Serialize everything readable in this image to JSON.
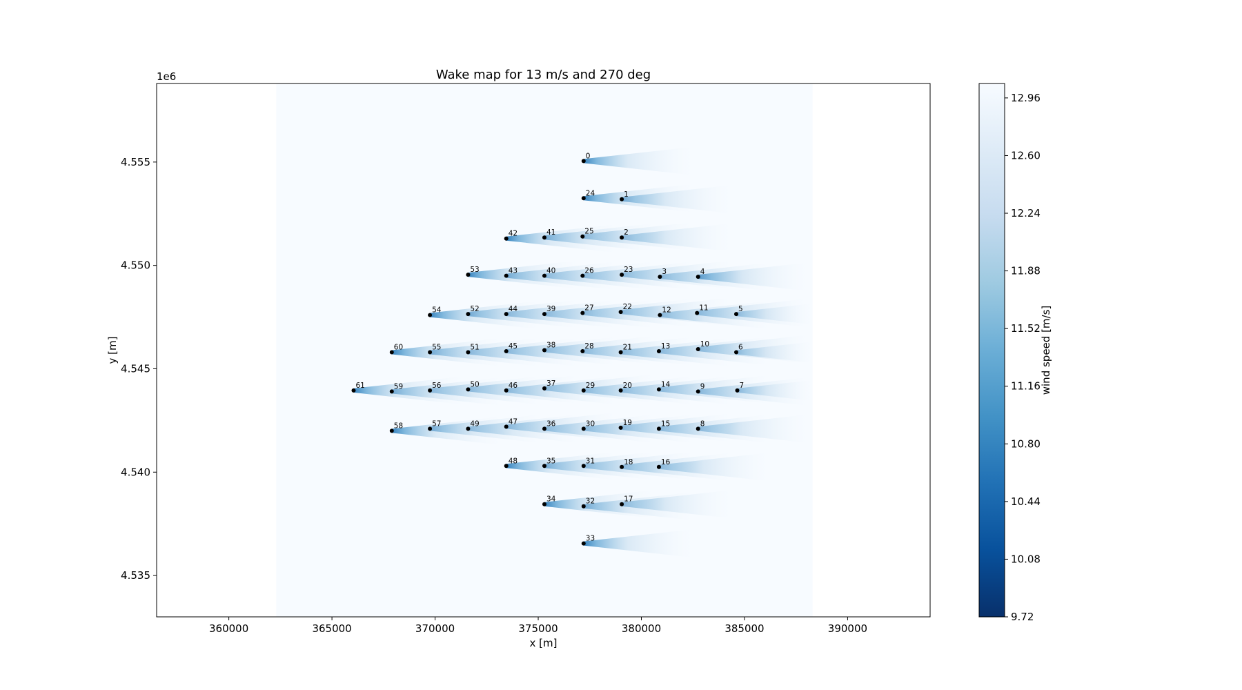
{
  "chart_data": {
    "type": "heatmap",
    "title": "Wake map for 13 m/s and 270 deg",
    "xlabel": "x [m]",
    "ylabel": "y [m]",
    "y_offset_label": "1e6",
    "xlim": [
      356500,
      394000
    ],
    "ylim": [
      4533000,
      4558800
    ],
    "xticks": [
      360000,
      365000,
      370000,
      375000,
      380000,
      385000,
      390000
    ],
    "xtick_labels": [
      "360000",
      "365000",
      "370000",
      "375000",
      "380000",
      "385000",
      "390000"
    ],
    "yticks": [
      4535000,
      4540000,
      4545000,
      4550000,
      4555000
    ],
    "ytick_labels": [
      "4.535",
      "4.540",
      "4.545",
      "4.550",
      "4.555"
    ],
    "domain": {
      "x": [
        362300,
        388300
      ],
      "y": [
        4533000,
        4558800
      ]
    },
    "wind": {
      "speed": 13,
      "direction_deg": 270
    },
    "colormap": "Blues_r",
    "colors": {
      "min": "#08306b",
      "max": "#f7fbff",
      "turbine": "#000000"
    },
    "colorbar": {
      "label": "wind speed [m/s]",
      "min": 9.72,
      "max": 13.05,
      "ticks": [
        9.72,
        10.08,
        10.44,
        10.8,
        11.16,
        11.52,
        11.88,
        12.24,
        12.6,
        12.96
      ],
      "tick_labels": [
        "9.72",
        "10.08",
        "10.44",
        "10.80",
        "11.16",
        "11.52",
        "11.88",
        "12.24",
        "12.60",
        "12.96"
      ]
    },
    "turbines": [
      {
        "id": "0",
        "x": 377200,
        "y": 4555050
      },
      {
        "id": "1",
        "x": 379050,
        "y": 4553200
      },
      {
        "id": "2",
        "x": 379050,
        "y": 4551350
      },
      {
        "id": "3",
        "x": 380900,
        "y": 4549450
      },
      {
        "id": "4",
        "x": 382750,
        "y": 4549450
      },
      {
        "id": "5",
        "x": 384600,
        "y": 4547650
      },
      {
        "id": "6",
        "x": 384600,
        "y": 4545800
      },
      {
        "id": "7",
        "x": 384650,
        "y": 4543950
      },
      {
        "id": "8",
        "x": 382750,
        "y": 4542100
      },
      {
        "id": "9",
        "x": 382750,
        "y": 4543900
      },
      {
        "id": "10",
        "x": 382750,
        "y": 4545950
      },
      {
        "id": "11",
        "x": 382700,
        "y": 4547700
      },
      {
        "id": "12",
        "x": 380900,
        "y": 4547600
      },
      {
        "id": "13",
        "x": 380850,
        "y": 4545850
      },
      {
        "id": "14",
        "x": 380850,
        "y": 4544000
      },
      {
        "id": "15",
        "x": 380850,
        "y": 4542100
      },
      {
        "id": "16",
        "x": 380850,
        "y": 4540250
      },
      {
        "id": "17",
        "x": 379050,
        "y": 4538450
      },
      {
        "id": "18",
        "x": 379050,
        "y": 4540250
      },
      {
        "id": "19",
        "x": 379000,
        "y": 4542150
      },
      {
        "id": "20",
        "x": 379000,
        "y": 4543950
      },
      {
        "id": "21",
        "x": 379000,
        "y": 4545800
      },
      {
        "id": "22",
        "x": 379000,
        "y": 4547750
      },
      {
        "id": "23",
        "x": 379050,
        "y": 4549550
      },
      {
        "id": "24",
        "x": 377200,
        "y": 4553250
      },
      {
        "id": "25",
        "x": 377150,
        "y": 4551400
      },
      {
        "id": "26",
        "x": 377150,
        "y": 4549500
      },
      {
        "id": "27",
        "x": 377150,
        "y": 4547700
      },
      {
        "id": "28",
        "x": 377150,
        "y": 4545850
      },
      {
        "id": "29",
        "x": 377200,
        "y": 4543950
      },
      {
        "id": "30",
        "x": 377200,
        "y": 4542100
      },
      {
        "id": "31",
        "x": 377200,
        "y": 4540300
      },
      {
        "id": "32",
        "x": 377200,
        "y": 4538350
      },
      {
        "id": "33",
        "x": 377200,
        "y": 4536550
      },
      {
        "id": "34",
        "x": 375300,
        "y": 4538450
      },
      {
        "id": "35",
        "x": 375300,
        "y": 4540300
      },
      {
        "id": "36",
        "x": 375300,
        "y": 4542100
      },
      {
        "id": "37",
        "x": 375300,
        "y": 4544050
      },
      {
        "id": "38",
        "x": 375300,
        "y": 4545900
      },
      {
        "id": "39",
        "x": 375300,
        "y": 4547650
      },
      {
        "id": "40",
        "x": 375300,
        "y": 4549500
      },
      {
        "id": "41",
        "x": 375300,
        "y": 4551350
      },
      {
        "id": "42",
        "x": 373450,
        "y": 4551300
      },
      {
        "id": "43",
        "x": 373450,
        "y": 4549500
      },
      {
        "id": "44",
        "x": 373450,
        "y": 4547650
      },
      {
        "id": "45",
        "x": 373450,
        "y": 4545850
      },
      {
        "id": "46",
        "x": 373450,
        "y": 4543950
      },
      {
        "id": "47",
        "x": 373450,
        "y": 4542200
      },
      {
        "id": "48",
        "x": 373450,
        "y": 4540300
      },
      {
        "id": "49",
        "x": 371600,
        "y": 4542100
      },
      {
        "id": "50",
        "x": 371600,
        "y": 4544000
      },
      {
        "id": "51",
        "x": 371600,
        "y": 4545800
      },
      {
        "id": "52",
        "x": 371600,
        "y": 4547650
      },
      {
        "id": "53",
        "x": 371600,
        "y": 4549550
      },
      {
        "id": "54",
        "x": 369750,
        "y": 4547600
      },
      {
        "id": "55",
        "x": 369750,
        "y": 4545800
      },
      {
        "id": "56",
        "x": 369750,
        "y": 4543950
      },
      {
        "id": "57",
        "x": 369750,
        "y": 4542100
      },
      {
        "id": "58",
        "x": 367900,
        "y": 4542000
      },
      {
        "id": "59",
        "x": 367900,
        "y": 4543900
      },
      {
        "id": "60",
        "x": 367900,
        "y": 4545800
      },
      {
        "id": "61",
        "x": 366050,
        "y": 4543950
      }
    ]
  }
}
